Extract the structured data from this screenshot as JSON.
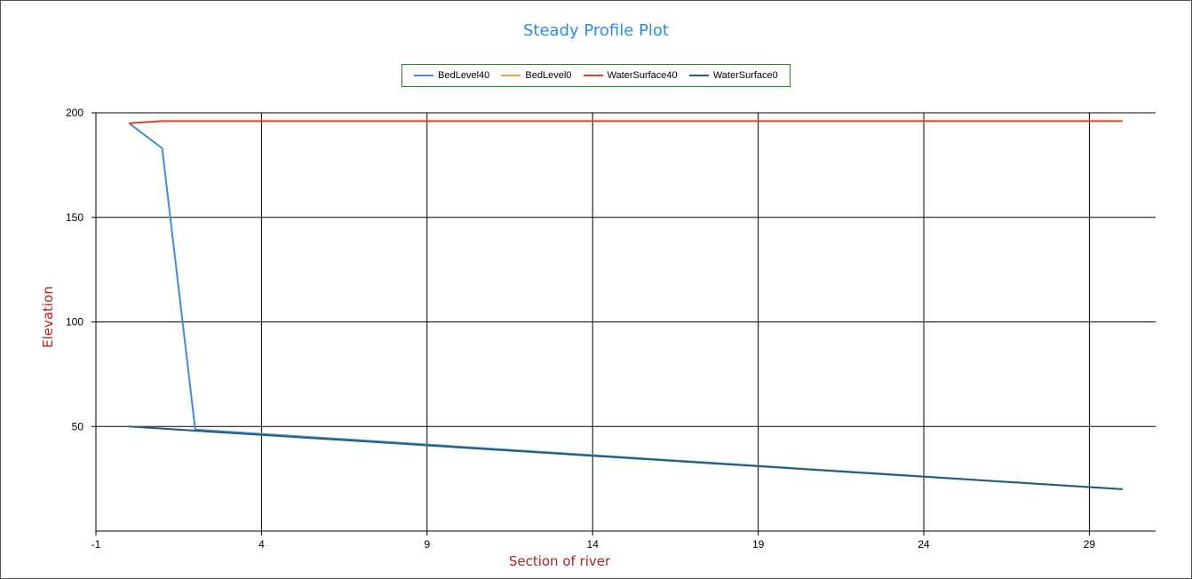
{
  "chart_data": {
    "type": "line",
    "title": "Steady Profile Plot",
    "xlabel": "Section of river",
    "ylabel": "Elevation",
    "xlim": [
      -1,
      31
    ],
    "ylim": [
      0,
      200
    ],
    "x_ticks": [
      -1,
      4,
      9,
      14,
      19,
      24,
      29
    ],
    "y_ticks": [
      50,
      100,
      150,
      200
    ],
    "grid": true,
    "legend_position": "top-center",
    "series": [
      {
        "name": "BedLevel40",
        "color": "#3f8de0",
        "x": [
          0,
          1,
          2,
          30
        ],
        "values": [
          195,
          183,
          48.5,
          20
        ]
      },
      {
        "name": "BedLevel0",
        "color": "#f2a338",
        "x": [
          0,
          30
        ],
        "values": [
          50,
          20
        ]
      },
      {
        "name": "WaterSurface40",
        "color": "#d9441c",
        "x": [
          0,
          1,
          30
        ],
        "values": [
          195,
          196,
          196
        ]
      },
      {
        "name": "WaterSurface0",
        "color": "#1c5f87",
        "x": [
          0,
          30
        ],
        "values": [
          50,
          20
        ]
      }
    ]
  }
}
